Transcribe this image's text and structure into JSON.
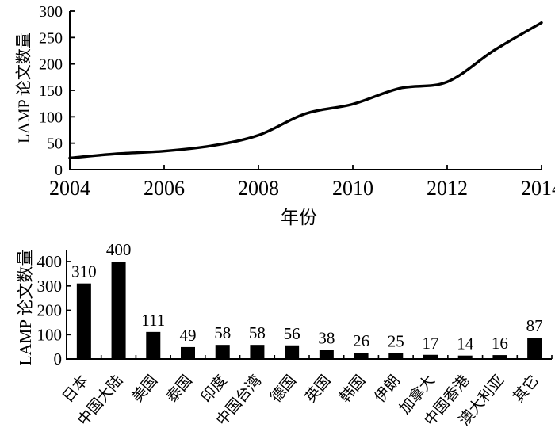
{
  "page": {
    "background": "#ffffff",
    "text_color": "#000000"
  },
  "chart_data": [
    {
      "type": "line",
      "title": "",
      "xlabel": "年份",
      "ylabel": "LAMP 论文数量",
      "x": [
        2004,
        2005,
        2006,
        2007,
        2008,
        2009,
        2010,
        2011,
        2012,
        2013,
        2014
      ],
      "values": [
        22,
        30,
        35,
        45,
        65,
        106,
        124,
        154,
        166,
        226,
        278
      ],
      "xlim": [
        2004,
        2014
      ],
      "ylim": [
        0,
        300
      ],
      "xticks": [
        2004,
        2006,
        2008,
        2010,
        2012,
        2014
      ],
      "yticks": [
        0,
        50,
        100,
        150,
        200,
        250,
        300
      ],
      "grid": false,
      "legend": "none",
      "line_color": "#000000",
      "line_width": 3.4
    },
    {
      "type": "bar",
      "title": "",
      "xlabel": "",
      "ylabel": "LAMP 论文数量",
      "categories": [
        "日本",
        "中国大陆",
        "美国",
        "泰国",
        "印度",
        "中国台湾",
        "德国",
        "英国",
        "韩国",
        "伊朗",
        "加拿大",
        "中国香港",
        "澳大利亚",
        "其它"
      ],
      "values": [
        310,
        400,
        111,
        49,
        58,
        58,
        56,
        38,
        26,
        25,
        17,
        14,
        16,
        87
      ],
      "ylim": [
        0,
        400
      ],
      "yticks": [
        0,
        100,
        200,
        300,
        400
      ],
      "grid": false,
      "legend": "none",
      "bar_color": "#000000",
      "value_labels_shown": true,
      "category_label_rotation_deg": -50
    }
  ]
}
